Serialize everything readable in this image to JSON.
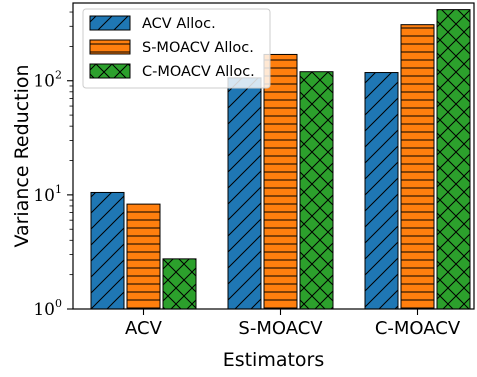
{
  "chart_data": {
    "type": "bar",
    "scale": "log",
    "xlabel": "Estimators",
    "ylabel": "Variance Reduction",
    "categories": [
      "ACV",
      "S-MOACV",
      "C-MOACV"
    ],
    "ylim": [
      1,
      480
    ],
    "yticks": [
      {
        "base": "10",
        "exp": "0",
        "value": 1
      },
      {
        "base": "10",
        "exp": "1",
        "value": 10
      },
      {
        "base": "10",
        "exp": "2",
        "value": 100
      }
    ],
    "legend_position": "top-left",
    "series": [
      {
        "name": "ACV Alloc.",
        "color": "#1f77b4",
        "hatch": "diagonal",
        "values": [
          10.5,
          106,
          118
        ]
      },
      {
        "name": "S-MOACV Alloc.",
        "color": "#ff7f0e",
        "hatch": "horizontal",
        "values": [
          8.3,
          170,
          310
        ]
      },
      {
        "name": "C-MOACV Alloc.",
        "color": "#2ca02c",
        "hatch": "cross",
        "values": [
          2.75,
          120,
          420
        ]
      }
    ]
  }
}
